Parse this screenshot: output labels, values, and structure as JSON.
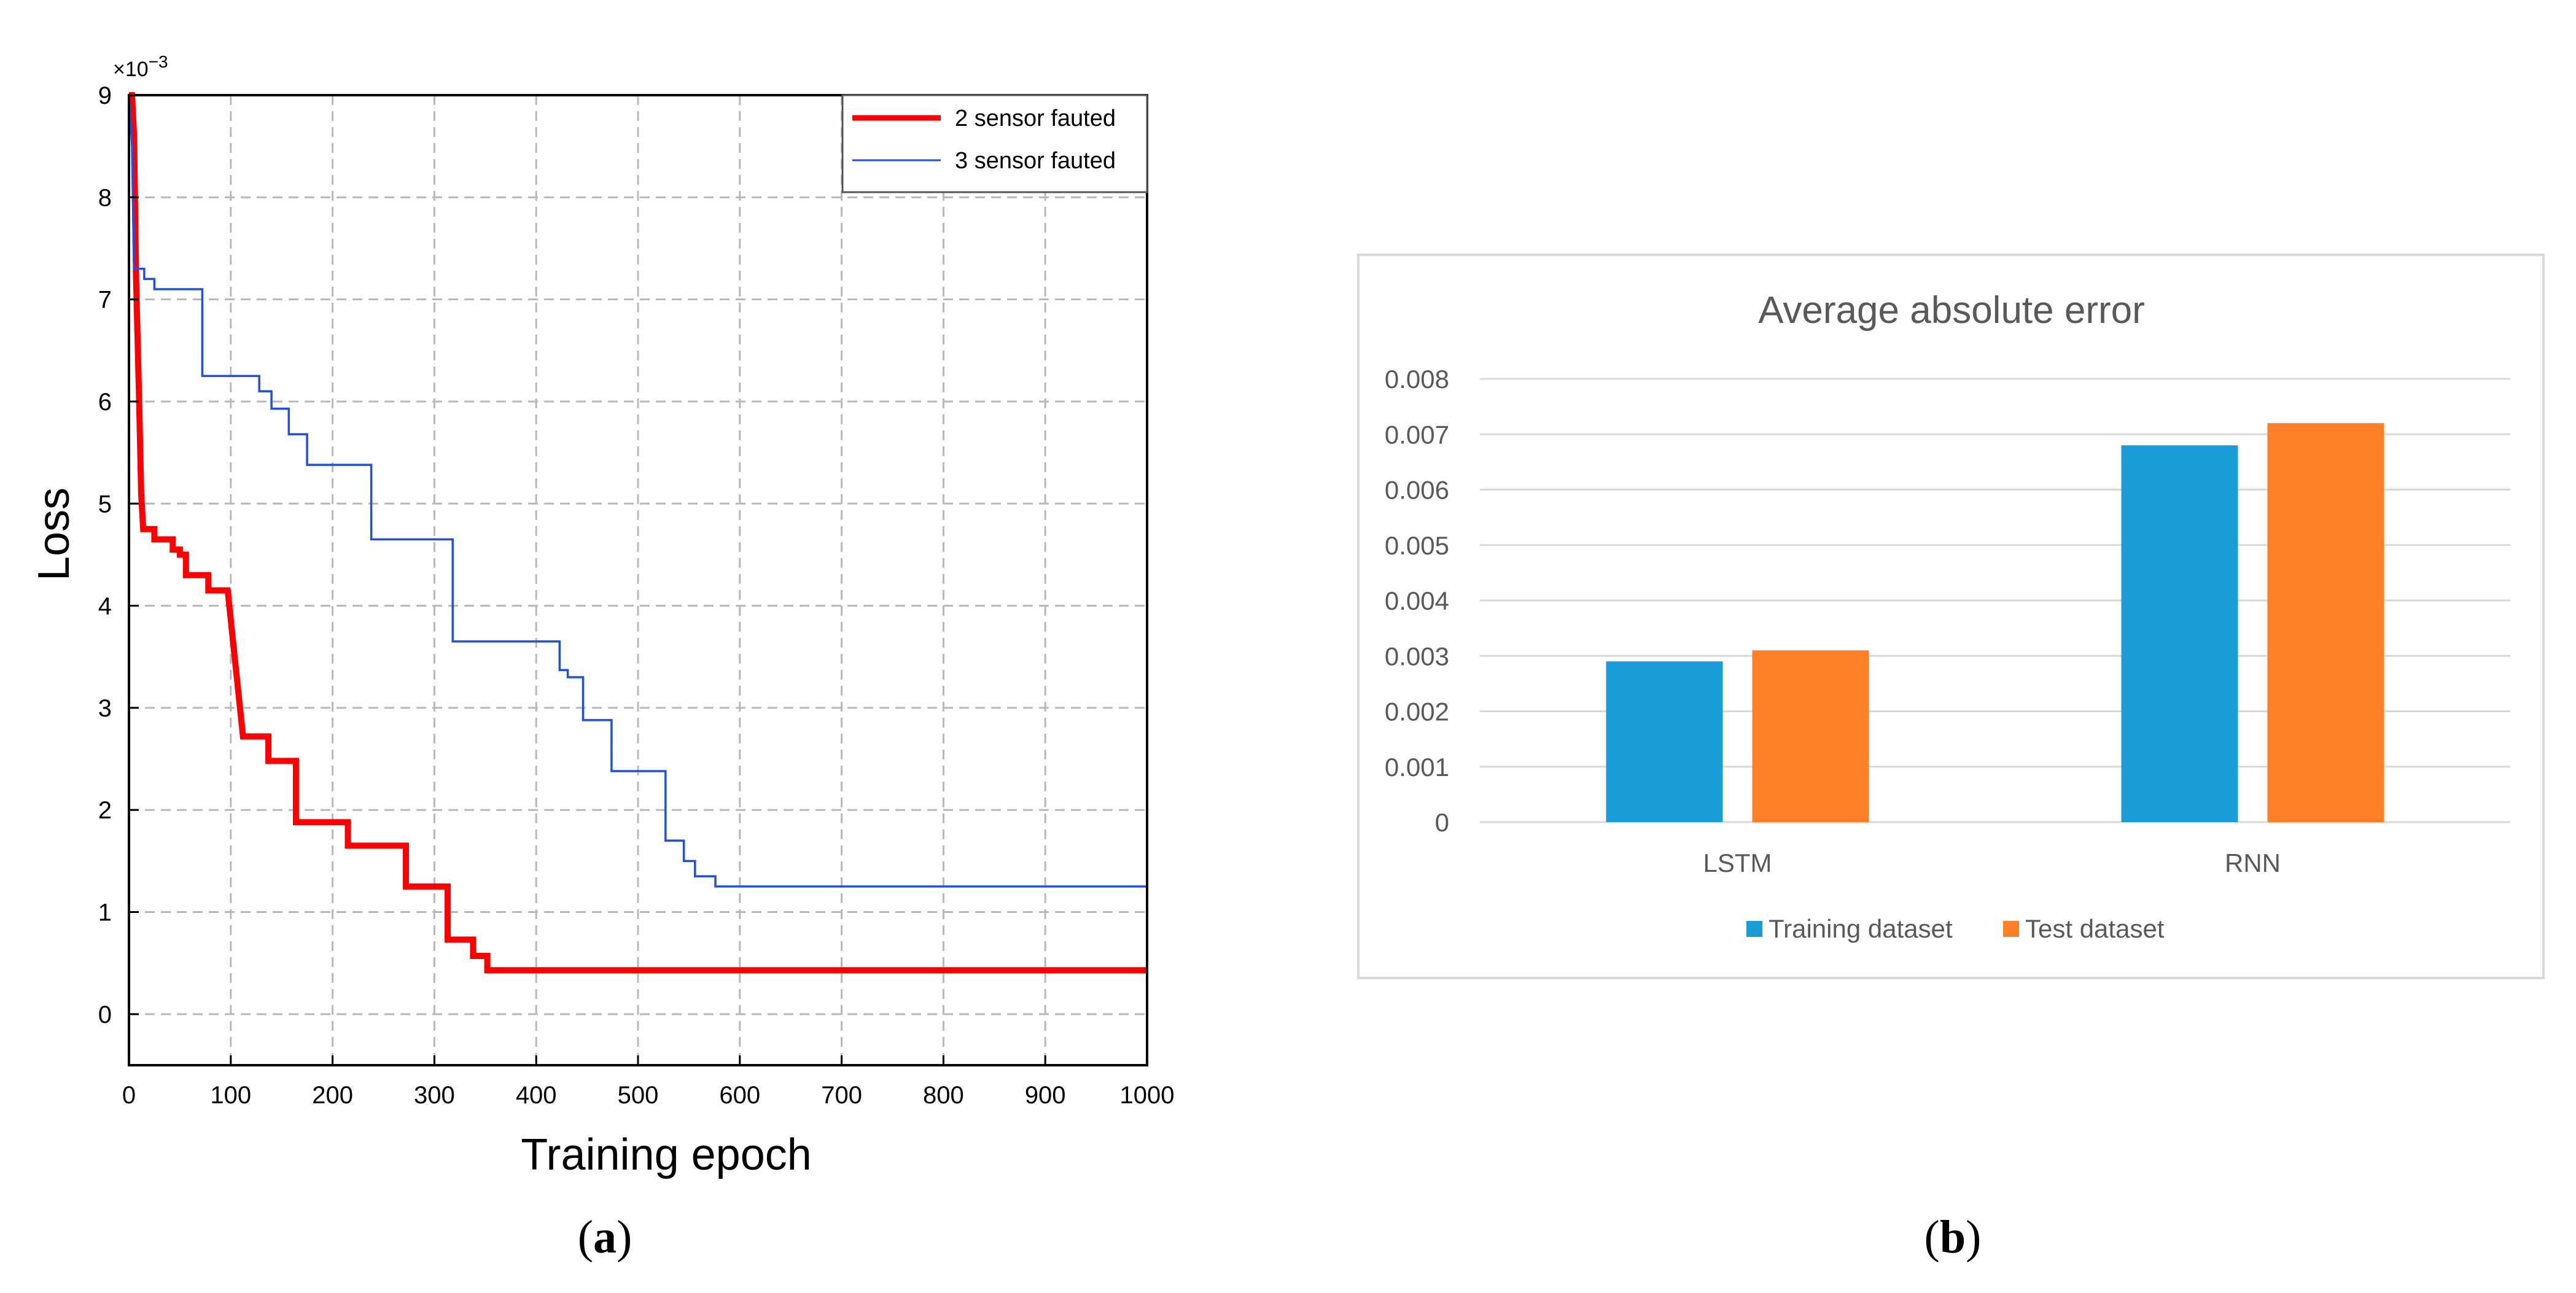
{
  "panels": {
    "a": {
      "caption_open": "(",
      "caption_letter": "a",
      "caption_close": ")"
    },
    "b": {
      "caption_open": "(",
      "caption_letter": "b",
      "caption_close": ")"
    }
  },
  "chart_data": [
    {
      "type": "line",
      "title": "",
      "xlabel": "Training epoch",
      "ylabel": "Loss",
      "y_multiplier_base": "×10",
      "y_multiplier_exp": "−3",
      "xlim": [
        0,
        1000
      ],
      "ylim": [
        -0.5,
        9
      ],
      "xticks": [
        0,
        100,
        200,
        300,
        400,
        500,
        600,
        700,
        800,
        900,
        1000
      ],
      "yticks": [
        0,
        1,
        2,
        3,
        4,
        5,
        6,
        7,
        8,
        9
      ],
      "grid": true,
      "legend_position": "top-right",
      "series": [
        {
          "name": "2 sensor fauted",
          "color": "#ff0000",
          "points": [
            [
              0,
              9
            ],
            [
              3,
              9
            ],
            [
              5,
              8.6
            ],
            [
              7,
              7.2
            ],
            [
              10,
              6
            ],
            [
              12,
              5.1
            ],
            [
              14,
              4.75
            ],
            [
              25,
              4.75
            ],
            [
              25,
              4.65
            ],
            [
              43,
              4.65
            ],
            [
              43,
              4.55
            ],
            [
              50,
              4.55
            ],
            [
              50,
              4.5
            ],
            [
              56,
              4.5
            ],
            [
              56,
              4.3
            ],
            [
              78,
              4.3
            ],
            [
              78,
              4.15
            ],
            [
              97,
              4.15
            ],
            [
              112,
              2.72
            ],
            [
              137,
              2.72
            ],
            [
              137,
              2.48
            ],
            [
              164,
              2.48
            ],
            [
              164,
              1.88
            ],
            [
              215,
              1.88
            ],
            [
              215,
              1.65
            ],
            [
              272,
              1.65
            ],
            [
              272,
              1.25
            ],
            [
              313,
              1.25
            ],
            [
              313,
              0.73
            ],
            [
              338,
              0.73
            ],
            [
              338,
              0.57
            ],
            [
              352,
              0.57
            ],
            [
              352,
              0.43
            ],
            [
              1000,
              0.43
            ]
          ]
        },
        {
          "name": "3 sensor fauted",
          "color": "#1f4fe6",
          "points": [
            [
              0,
              9
            ],
            [
              3,
              8.5
            ],
            [
              5,
              7.3
            ],
            [
              15,
              7.3
            ],
            [
              15,
              7.2
            ],
            [
              25,
              7.2
            ],
            [
              25,
              7.1
            ],
            [
              72,
              7.1
            ],
            [
              72,
              6.25
            ],
            [
              128,
              6.25
            ],
            [
              128,
              6.1
            ],
            [
              140,
              6.1
            ],
            [
              140,
              5.93
            ],
            [
              157,
              5.93
            ],
            [
              157,
              5.68
            ],
            [
              175,
              5.68
            ],
            [
              175,
              5.38
            ],
            [
              238,
              5.38
            ],
            [
              238,
              4.65
            ],
            [
              318,
              4.65
            ],
            [
              318,
              3.65
            ],
            [
              423,
              3.65
            ],
            [
              423,
              3.37
            ],
            [
              431,
              3.37
            ],
            [
              431,
              3.3
            ],
            [
              446,
              3.3
            ],
            [
              446,
              2.88
            ],
            [
              474,
              2.88
            ],
            [
              474,
              2.38
            ],
            [
              527,
              2.38
            ],
            [
              527,
              1.7
            ],
            [
              545,
              1.7
            ],
            [
              545,
              1.5
            ],
            [
              556,
              1.5
            ],
            [
              556,
              1.35
            ],
            [
              576,
              1.35
            ],
            [
              576,
              1.25
            ],
            [
              1000,
              1.25
            ]
          ]
        }
      ]
    },
    {
      "type": "bar",
      "title": "Average absolute error",
      "xlabel": "",
      "ylabel": "",
      "categories": [
        "LSTM",
        "RNN"
      ],
      "ylim": [
        0,
        0.008
      ],
      "yticks": [
        "0",
        "0.001",
        "0.002",
        "0.003",
        "0.004",
        "0.005",
        "0.006",
        "0.007",
        "0.008"
      ],
      "grid": true,
      "legend_position": "bottom",
      "series": [
        {
          "name": "Training dataset",
          "color": "#1a9cd8",
          "values": [
            0.0029,
            0.0068
          ]
        },
        {
          "name": "Test dataset",
          "color": "#ff7f27",
          "values": [
            0.0031,
            0.0072
          ]
        }
      ]
    }
  ]
}
